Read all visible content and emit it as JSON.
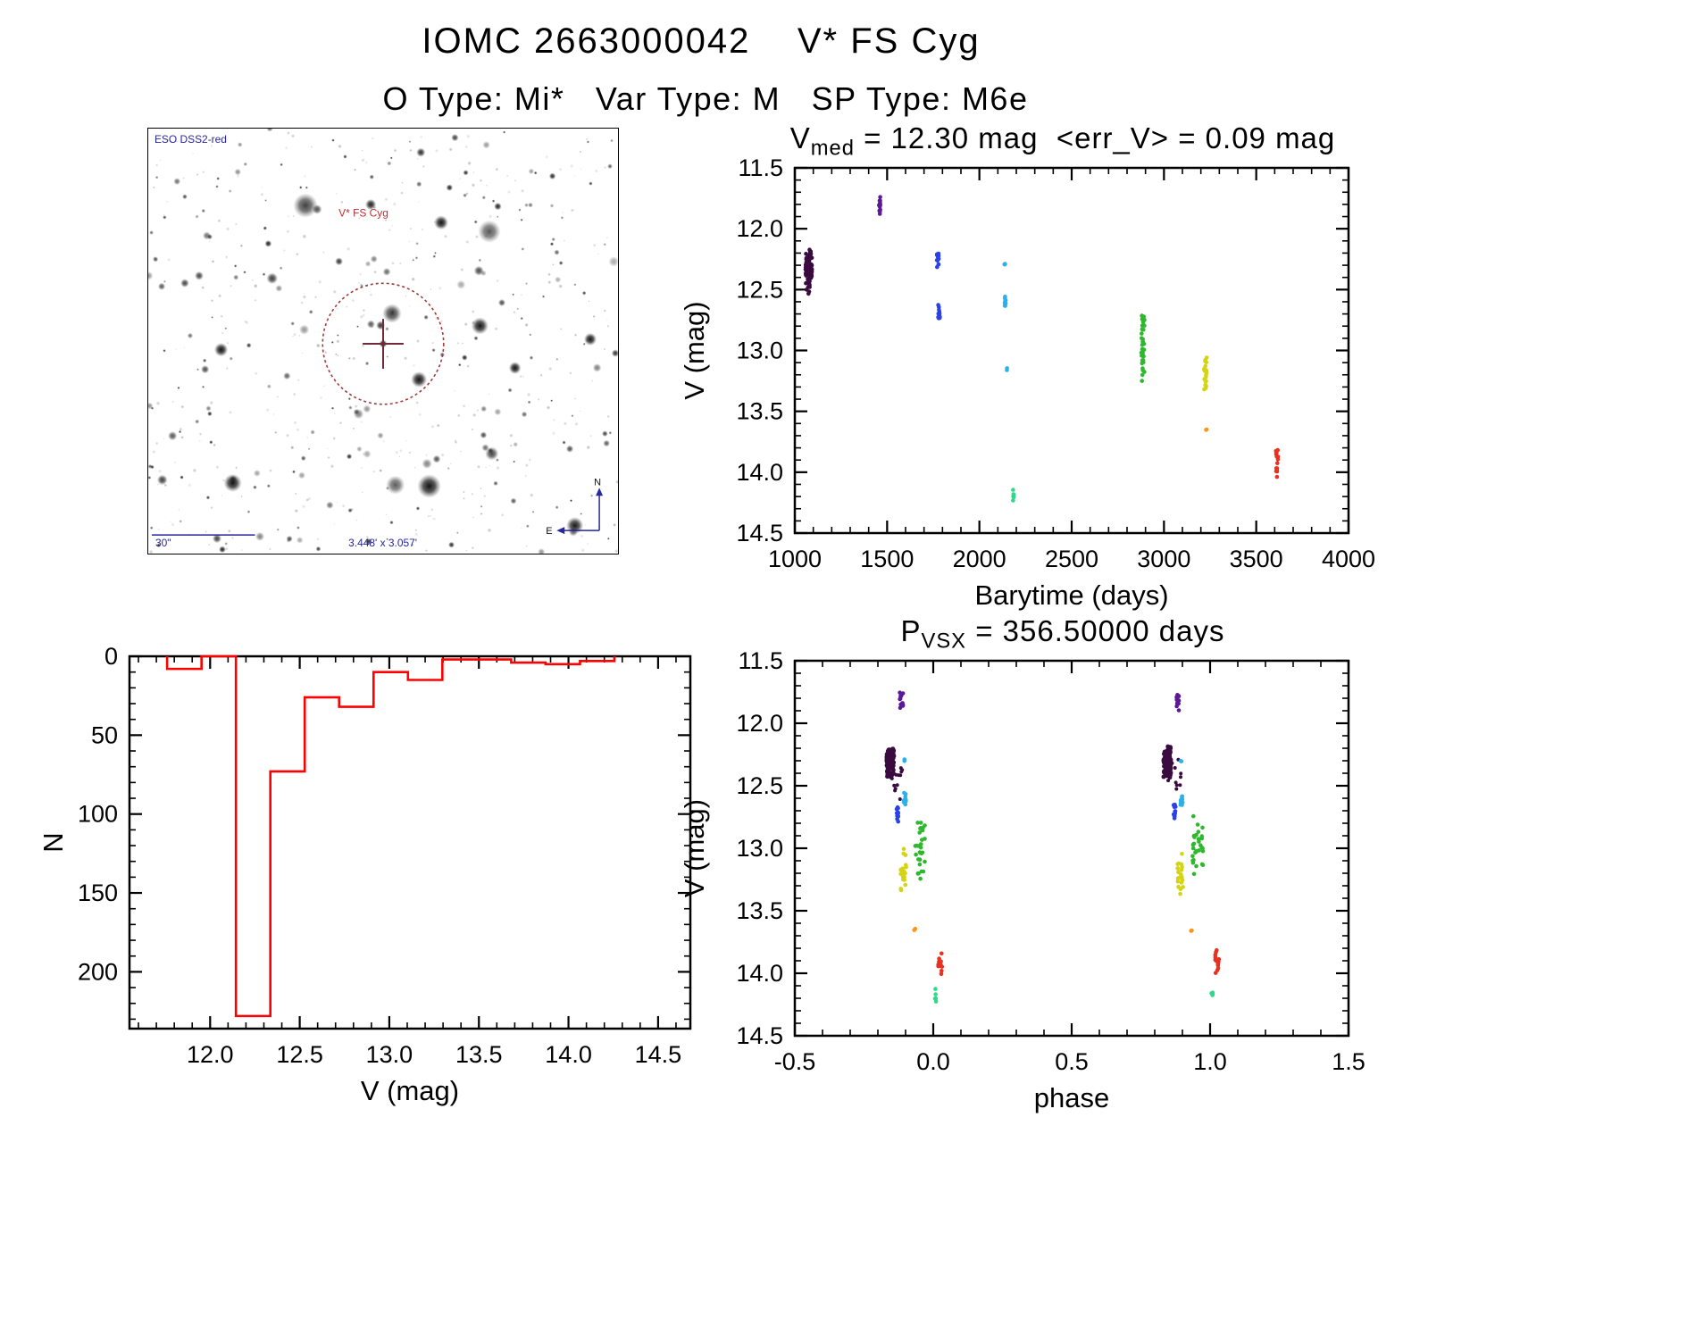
{
  "page": {
    "title": "IOMC 2663000042    V* FS Cyg",
    "subtitle": "O Type: Mi*   Var Type: M   SP Type: M6e"
  },
  "finder_chart": {
    "survey_label": "ESO DSS2-red",
    "target_label": "V* FS Cyg",
    "scale_label": "30\"",
    "fov_label": "3.448' x 3.057'",
    "north_label": "N",
    "east_label": "E",
    "marker_color": "#a13a3a",
    "annotation_color": "#27279e"
  },
  "chart_data": [
    {
      "id": "lightcurve",
      "type": "scatter",
      "title_prefix": "V",
      "title_sub": "med",
      "title_rest": " = 12.30 mag  <err_V> = 0.09 mag",
      "xlabel": "Barytime (days)",
      "ylabel": "V (mag)",
      "xlim": [
        1000,
        4000
      ],
      "ylim": [
        11.5,
        14.5
      ],
      "y_inverted": true,
      "grid": false,
      "xticks": [
        1000,
        1500,
        2000,
        2500,
        3000,
        3500,
        4000
      ],
      "xtick_labels": [
        "1000",
        "1500",
        "2000",
        "2500",
        "3000",
        "3500",
        "4000"
      ],
      "yticks": [
        11.5,
        12.0,
        12.5,
        13.0,
        13.5,
        14.0,
        14.5
      ],
      "ytick_labels": [
        "11.5",
        "12.0",
        "12.5",
        "13.0",
        "13.5",
        "14.0",
        "14.5"
      ],
      "x_minor": 100,
      "y_minor": 0.1,
      "clusters": [
        {
          "x": 1075,
          "x_spread": 18,
          "v_min": 12.15,
          "v_max": 12.55,
          "color": "#3a0b3f",
          "n": 95,
          "size": 2.3
        },
        {
          "x": 1460,
          "x_spread": 5,
          "v_min": 11.72,
          "v_max": 11.9,
          "color": "#5a1a96",
          "n": 14,
          "size": 2.3
        },
        {
          "x": 1775,
          "x_spread": 5,
          "v_min": 12.18,
          "v_max": 12.35,
          "color": "#2a41e8",
          "n": 13,
          "size": 2.3
        },
        {
          "x": 1782,
          "x_spread": 5,
          "v_min": 12.62,
          "v_max": 12.8,
          "color": "#2a41e8",
          "n": 13,
          "size": 2.3
        },
        {
          "x": 2137,
          "x_spread": 2,
          "v_min": 12.27,
          "v_max": 12.32,
          "color": "#2bb1ea",
          "n": 3,
          "size": 2.3
        },
        {
          "x": 2140,
          "x_spread": 3,
          "v_min": 12.55,
          "v_max": 12.67,
          "color": "#2bb1ea",
          "n": 10,
          "size": 2.3
        },
        {
          "x": 2150,
          "x_spread": 1,
          "v_min": 13.14,
          "v_max": 13.19,
          "color": "#2bb1ea",
          "n": 2,
          "size": 2.3
        },
        {
          "x": 2185,
          "x_spread": 3,
          "v_min": 14.12,
          "v_max": 14.25,
          "color": "#2ed98a",
          "n": 7,
          "size": 2.3
        },
        {
          "x": 2886,
          "x_spread": 9,
          "v_min": 12.7,
          "v_max": 13.28,
          "color": "#2eb82e",
          "n": 32,
          "size": 2.3
        },
        {
          "x": 3225,
          "x_spread": 7,
          "v_min": 13.0,
          "v_max": 13.42,
          "color": "#d4d414",
          "n": 22,
          "size": 2.3
        },
        {
          "x": 3230,
          "x_spread": 2,
          "v_min": 13.63,
          "v_max": 13.67,
          "color": "#ff9518",
          "n": 2,
          "size": 2.3
        },
        {
          "x": 3612,
          "x_spread": 6,
          "v_min": 13.75,
          "v_max": 14.08,
          "color": "#e8311f",
          "n": 16,
          "size": 2.3
        }
      ]
    },
    {
      "id": "histogram",
      "type": "bar",
      "title": "",
      "xlabel": "V (mag)",
      "ylabel": "N",
      "xlim": [
        11.55,
        14.68
      ],
      "ylim": [
        0,
        236
      ],
      "grid": false,
      "bar_color": "#ff0000",
      "xticks": [
        12.0,
        12.5,
        13.0,
        13.5,
        14.0,
        14.5
      ],
      "xtick_labels": [
        "12.0",
        "12.5",
        "13.0",
        "13.5",
        "14.0",
        "14.5"
      ],
      "yticks": [
        0,
        50,
        100,
        150,
        200
      ],
      "ytick_labels": [
        "0",
        "50",
        "100",
        "150",
        "200"
      ],
      "x_minor": 0.1,
      "y_minor": 10,
      "bin_edges": [
        11.76,
        11.952,
        12.144,
        12.336,
        12.528,
        12.72,
        12.912,
        13.104,
        13.296,
        13.488,
        13.68,
        13.872,
        14.064,
        14.256
      ],
      "counts": [
        8,
        0,
        228,
        73,
        26,
        32,
        10,
        15,
        2,
        2,
        4,
        5,
        3
      ]
    },
    {
      "id": "phase",
      "type": "scatter",
      "title_prefix": "P",
      "title_sub": "VSX",
      "title_rest": " = 356.50000 days",
      "xlabel": "phase",
      "ylabel": "V (mag)",
      "xlim": [
        -0.5,
        1.5
      ],
      "ylim": [
        11.5,
        14.5
      ],
      "y_inverted": true,
      "grid": false,
      "repeat_offset": 1.0,
      "xticks": [
        -0.5,
        0.0,
        0.5,
        1.0,
        1.5
      ],
      "xtick_labels": [
        "-0.5",
        "0.0",
        "0.5",
        "1.0",
        "1.5"
      ],
      "yticks": [
        11.5,
        12.0,
        12.5,
        13.0,
        13.5,
        14.0,
        14.5
      ],
      "ytick_labels": [
        "11.5",
        "12.0",
        "12.5",
        "13.0",
        "13.5",
        "14.0",
        "14.5"
      ],
      "x_minor": 0.1,
      "y_minor": 0.1,
      "clusters": [
        {
          "x": -0.155,
          "x_spread": 0.013,
          "v_min": 12.17,
          "v_max": 12.45,
          "color": "#3a0b3f",
          "n": 110,
          "size": 2.5
        },
        {
          "x": -0.13,
          "x_spread": 0.025,
          "v_min": 12.25,
          "v_max": 12.62,
          "color": "#3a0b3f",
          "n": 12,
          "size": 2.0
        },
        {
          "x": -0.115,
          "x_spread": 0.006,
          "v_min": 11.72,
          "v_max": 11.9,
          "color": "#5a1a96",
          "n": 14,
          "size": 2.3
        },
        {
          "x": -0.128,
          "x_spread": 0.004,
          "v_min": 12.62,
          "v_max": 12.8,
          "color": "#2a41e8",
          "n": 12,
          "size": 2.3
        },
        {
          "x": -0.103,
          "x_spread": 0.004,
          "v_min": 12.55,
          "v_max": 12.67,
          "color": "#2bb1ea",
          "n": 10,
          "size": 2.3
        },
        {
          "x": -0.105,
          "x_spread": 0.002,
          "v_min": 12.28,
          "v_max": 12.32,
          "color": "#2bb1ea",
          "n": 2,
          "size": 2.3
        },
        {
          "x": -0.108,
          "x_spread": 0.01,
          "v_min": 13.0,
          "v_max": 13.42,
          "color": "#d4d414",
          "n": 20,
          "size": 2.3
        },
        {
          "x": -0.045,
          "x_spread": 0.02,
          "v_min": 12.72,
          "v_max": 13.3,
          "color": "#2eb82e",
          "n": 30,
          "size": 2.3
        },
        {
          "x": -0.067,
          "x_spread": 0.002,
          "v_min": 13.64,
          "v_max": 13.67,
          "color": "#ff9518",
          "n": 2,
          "size": 2.3
        },
        {
          "x": 0.025,
          "x_spread": 0.007,
          "v_min": 13.75,
          "v_max": 14.08,
          "color": "#e8311f",
          "n": 14,
          "size": 2.3
        },
        {
          "x": 0.008,
          "x_spread": 0.003,
          "v_min": 14.12,
          "v_max": 14.25,
          "color": "#2ed98a",
          "n": 6,
          "size": 2.3
        }
      ]
    }
  ]
}
